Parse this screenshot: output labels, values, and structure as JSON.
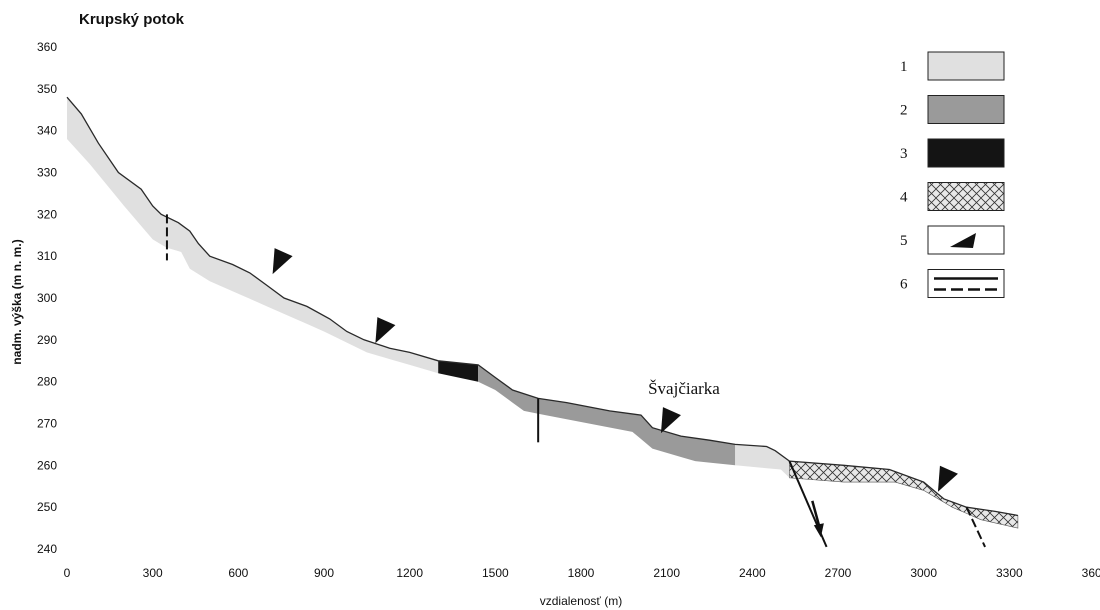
{
  "chart_data": {
    "type": "area",
    "title": "Krupský potok",
    "xlabel": "vzdialenosť (m)",
    "ylabel": "nadm. výška (m n. m.)",
    "xlim": [
      0,
      3600
    ],
    "ylim": [
      240,
      360
    ],
    "xticks": [
      0,
      300,
      600,
      900,
      1200,
      1500,
      1800,
      2100,
      2400,
      2700,
      3000,
      3300,
      3600
    ],
    "yticks": [
      240,
      250,
      260,
      270,
      280,
      290,
      300,
      310,
      320,
      330,
      340,
      350,
      360
    ],
    "grid": false,
    "legend_position": "top-right",
    "profile_top": [
      [
        0,
        348
      ],
      [
        50,
        344
      ],
      [
        110,
        337
      ],
      [
        180,
        330
      ],
      [
        260,
        326
      ],
      [
        300,
        322
      ],
      [
        330,
        320
      ],
      [
        390,
        318
      ],
      [
        430,
        316
      ],
      [
        460,
        313
      ],
      [
        500,
        310
      ],
      [
        580,
        308
      ],
      [
        640,
        306
      ],
      [
        700,
        303
      ],
      [
        760,
        300
      ],
      [
        840,
        298
      ],
      [
        920,
        295
      ],
      [
        980,
        292
      ],
      [
        1040,
        290
      ],
      [
        1130,
        288
      ],
      [
        1200,
        287
      ],
      [
        1300,
        285
      ],
      [
        1440,
        284
      ],
      [
        1500,
        281
      ],
      [
        1560,
        278
      ],
      [
        1650,
        276
      ],
      [
        1750,
        275
      ],
      [
        1900,
        273
      ],
      [
        2010,
        272
      ],
      [
        2050,
        269
      ],
      [
        2150,
        267
      ],
      [
        2250,
        266
      ],
      [
        2340,
        265
      ],
      [
        2450,
        264.5
      ],
      [
        2480,
        263.5
      ],
      [
        2530,
        261
      ],
      [
        2720,
        260
      ],
      [
        2880,
        259
      ],
      [
        3000,
        256
      ],
      [
        3070,
        252
      ],
      [
        3150,
        250
      ],
      [
        3250,
        249
      ],
      [
        3330,
        248
      ]
    ],
    "profile_bottom": [
      [
        0,
        338
      ],
      [
        80,
        332
      ],
      [
        200,
        322
      ],
      [
        300,
        314
      ],
      [
        350,
        312
      ],
      [
        400,
        311
      ],
      [
        430,
        307
      ],
      [
        500,
        304
      ],
      [
        600,
        301
      ],
      [
        800,
        295
      ],
      [
        900,
        292
      ],
      [
        1050,
        287
      ],
      [
        1200,
        284
      ],
      [
        1300,
        282
      ],
      [
        1440,
        280
      ],
      [
        1500,
        278
      ],
      [
        1600,
        273
      ],
      [
        1750,
        271
      ],
      [
        1980,
        268
      ],
      [
        2050,
        264
      ],
      [
        2200,
        261
      ],
      [
        2340,
        260
      ],
      [
        2500,
        259
      ],
      [
        2530,
        257
      ],
      [
        2720,
        256
      ],
      [
        2900,
        256
      ],
      [
        3000,
        254
      ],
      [
        3100,
        250
      ],
      [
        3200,
        247
      ],
      [
        3330,
        245
      ]
    ],
    "segments": [
      {
        "category": "1",
        "from": 0,
        "to": 1300
      },
      {
        "category": "3",
        "from": 1300,
        "to": 1440
      },
      {
        "category": "2",
        "from": 1440,
        "to": 2340
      },
      {
        "category": "1",
        "from": 2340,
        "to": 2530
      },
      {
        "category": "4",
        "from": 2530,
        "to": 3330
      }
    ],
    "markers": [
      {
        "x": 720,
        "y": 305.7
      },
      {
        "x": 1080,
        "y": 289.2
      },
      {
        "x": 2080,
        "y": 267.7
      },
      {
        "x": 3050,
        "y": 253.7
      }
    ],
    "faults": [
      {
        "style": "dashed",
        "x1": 350,
        "y1": 320,
        "x2": 350,
        "y2": 309
      },
      {
        "style": "solid",
        "x1": 1650,
        "y1": 276,
        "x2": 1650,
        "y2": 265.5
      },
      {
        "style": "solid",
        "x1": 2530,
        "y1": 261,
        "x2": 2660,
        "y2": 240.5
      },
      {
        "style": "dashed",
        "x1": 3150,
        "y1": 250,
        "x2": 3215,
        "y2": 240.5
      }
    ],
    "fault_arrow": {
      "x1": 2610,
      "y1": 251.5,
      "x2": 2640,
      "y2": 244
    },
    "annotations": [
      {
        "text": "Švajčiarka",
        "x": 2035,
        "y": 277
      }
    ],
    "legend": [
      {
        "label": "1",
        "type": "fill",
        "color": "#e0e0e0"
      },
      {
        "label": "2",
        "type": "fill",
        "color": "#9a9a9a"
      },
      {
        "label": "3",
        "type": "fill",
        "color": "#141414"
      },
      {
        "label": "4",
        "type": "hatch",
        "color": "#e8e8e8"
      },
      {
        "label": "5",
        "type": "marker",
        "color": "#111111"
      },
      {
        "label": "6",
        "type": "lines",
        "color": "#111111"
      }
    ]
  }
}
